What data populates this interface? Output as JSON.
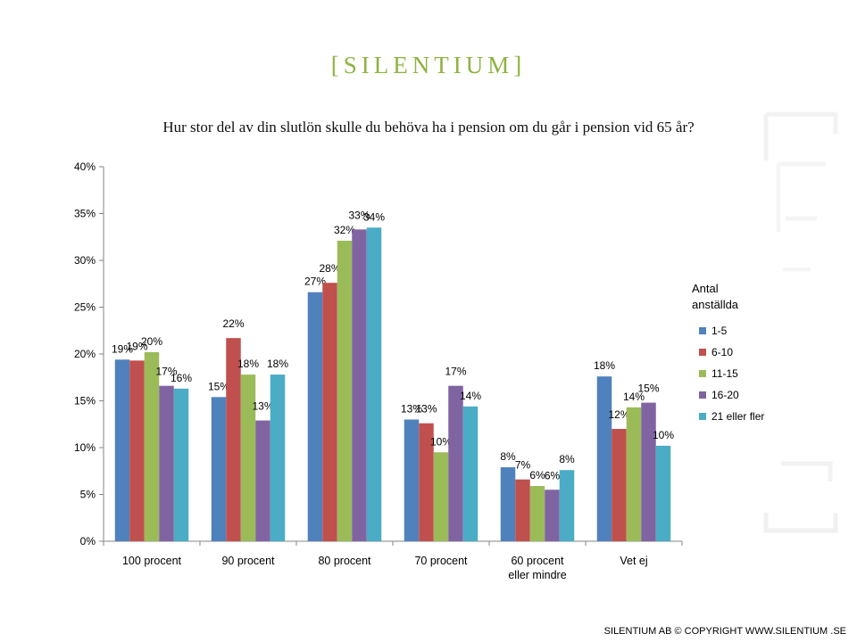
{
  "brand": "[SILENTIUM]",
  "footer": "SILENTIUM AB © COPYRIGHT WWW.SILENTIUM .SE",
  "colors": {
    "brand": "#8eb340",
    "series": [
      "#4f81bd",
      "#c0504d",
      "#9bbb59",
      "#8064a2",
      "#4bacc6"
    ]
  },
  "chart_data": {
    "type": "bar",
    "title": "Hur stor del av din slutlön skulle du behöva ha i pension om du går i pension vid 65 år?",
    "categories": [
      "100 procent",
      "90 procent",
      "80 procent",
      "70 procent",
      "60 procent eller mindre",
      "Vet ej"
    ],
    "ylim": [
      0,
      40
    ],
    "yticks": [
      "0%",
      "5%",
      "10%",
      "15%",
      "20%",
      "25%",
      "30%",
      "35%",
      "40%"
    ],
    "grid": false,
    "legend_title": "Antal anställda",
    "legend_position": "right",
    "series": [
      {
        "name": "1-5",
        "values": [
          19,
          15,
          27,
          13,
          8,
          18
        ],
        "labels": [
          "19%",
          "15%",
          "27%",
          "13%",
          "8%",
          "18%"
        ]
      },
      {
        "name": "6-10",
        "values": [
          19,
          22,
          28,
          13,
          7,
          12
        ],
        "labels": [
          "19%",
          "22%",
          "28%",
          "13%",
          "7%",
          "12%"
        ]
      },
      {
        "name": "11-15",
        "values": [
          20,
          18,
          32,
          10,
          6,
          14
        ],
        "labels": [
          "20%",
          "18%",
          "32%",
          "10%",
          "6%",
          "14%"
        ]
      },
      {
        "name": "16-20",
        "values": [
          17,
          13,
          33,
          17,
          6,
          15
        ],
        "labels": [
          "17%",
          "13%",
          "33%",
          "17%",
          "6%",
          "15%"
        ]
      },
      {
        "name": "21 eller fler",
        "values": [
          16,
          18,
          34,
          14,
          8,
          10
        ],
        "labels": [
          "16%",
          "18%",
          "34%",
          "14%",
          "8%",
          "10%"
        ]
      }
    ],
    "exact_values": [
      [
        19.4,
        15.4,
        26.6,
        13.0,
        7.9,
        17.6
      ],
      [
        19.3,
        21.7,
        27.6,
        12.6,
        6.6,
        12.0
      ],
      [
        20.2,
        17.8,
        32.1,
        9.5,
        5.9,
        14.3
      ],
      [
        16.6,
        12.9,
        33.3,
        16.6,
        5.5,
        14.8
      ],
      [
        16.3,
        17.8,
        33.5,
        14.4,
        7.6,
        10.2
      ]
    ]
  }
}
